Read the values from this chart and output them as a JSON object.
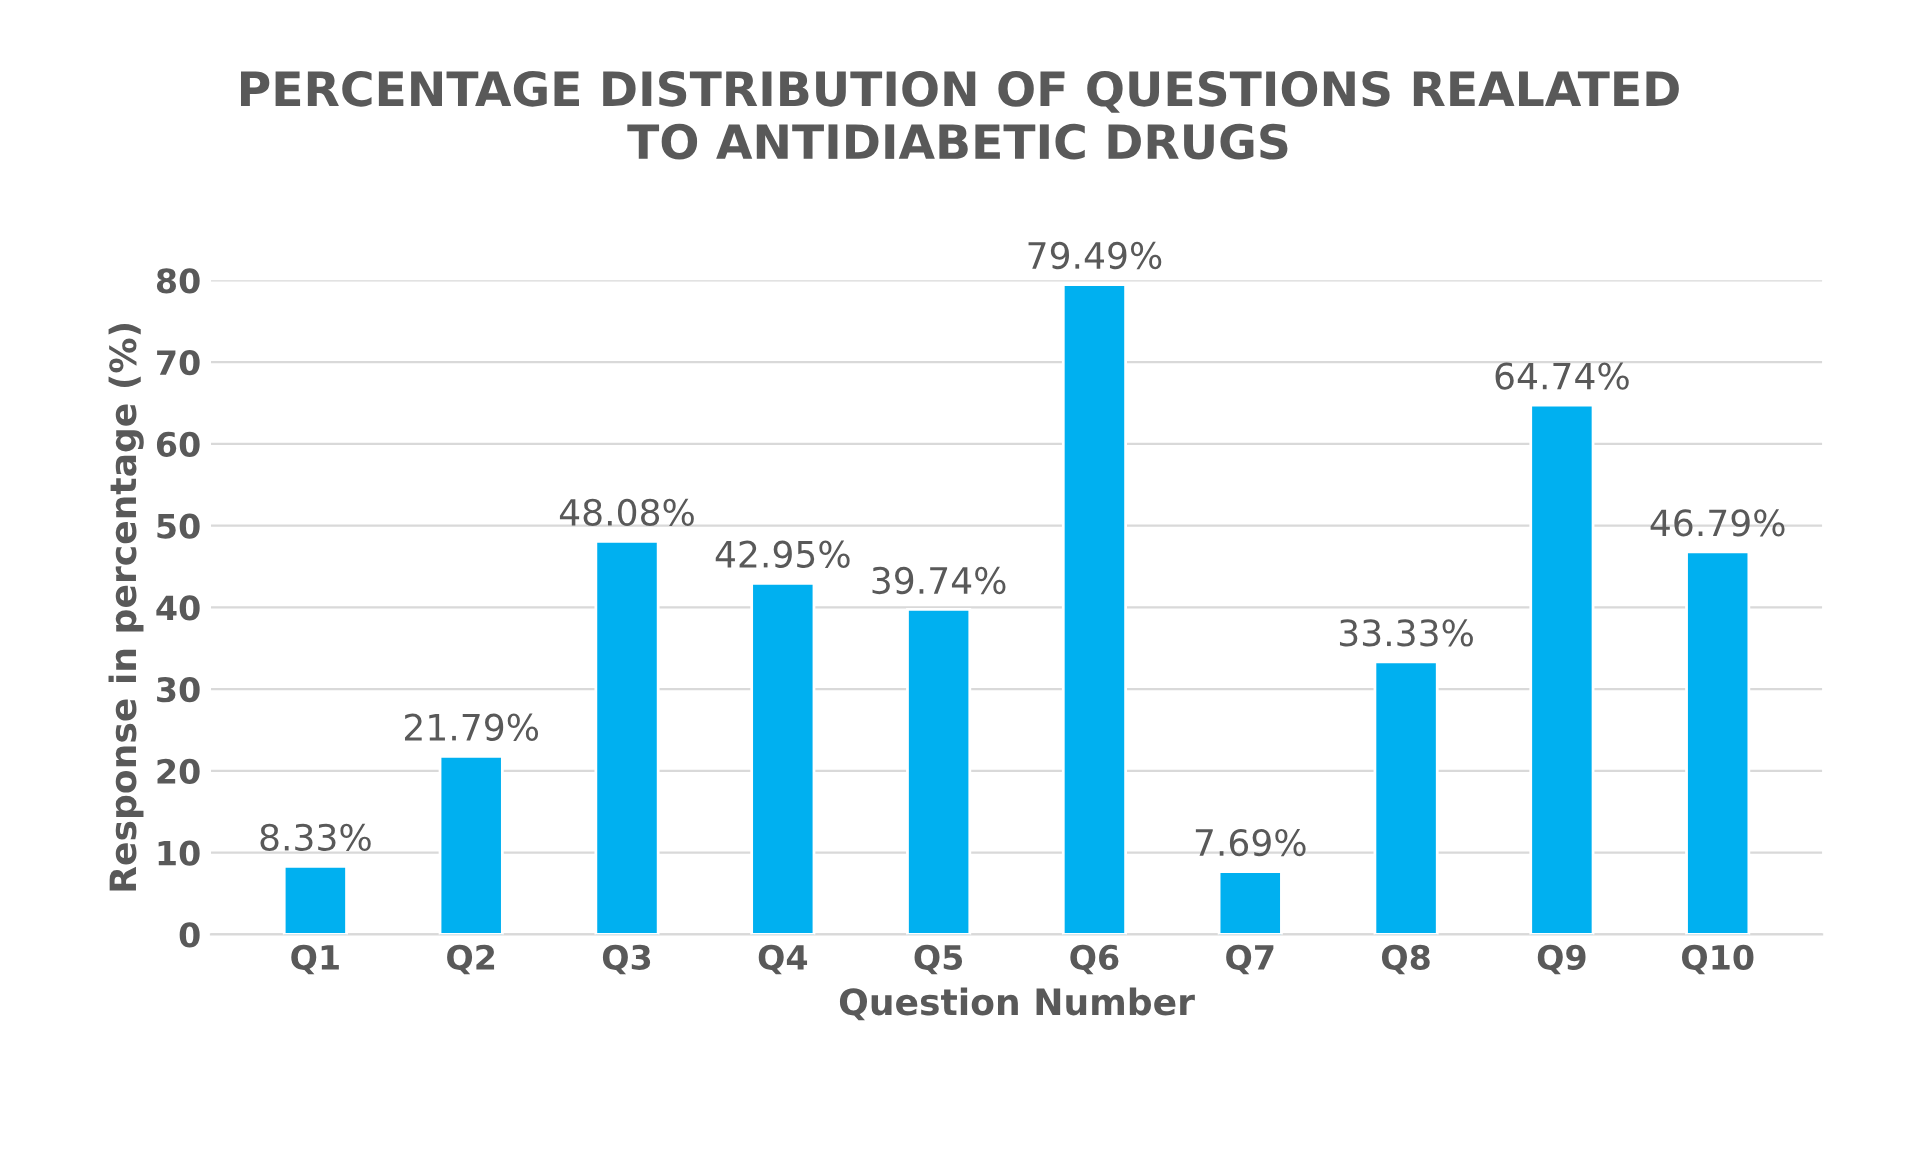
{
  "chart_data": {
    "type": "bar",
    "title": "PERCENTAGE DISTRIBUTION OF QUESTIONS REALATED\nTO ANTIDIABETIC DRUGS",
    "xlabel": "Question Number",
    "ylabel": "Response in percentage (%)",
    "categories": [
      "Q1",
      "Q2",
      "Q3",
      "Q4",
      "Q5",
      "Q6",
      "Q7",
      "Q8",
      "Q9",
      "Q10"
    ],
    "values": [
      8.33,
      21.79,
      48.08,
      42.95,
      39.74,
      79.49,
      7.69,
      33.33,
      64.74,
      46.79
    ],
    "value_labels": [
      "8.33%",
      "21.79%",
      "48.08%",
      "42.95%",
      "39.74%",
      "79.49%",
      "7.69%",
      "33.33%",
      "64.74%",
      "46.79%"
    ],
    "color": "#00b0f0",
    "ylim": [
      0,
      80
    ],
    "yticks": [
      0,
      10,
      20,
      30,
      40,
      50,
      60,
      70,
      80
    ],
    "grid": "y",
    "legend": false
  }
}
